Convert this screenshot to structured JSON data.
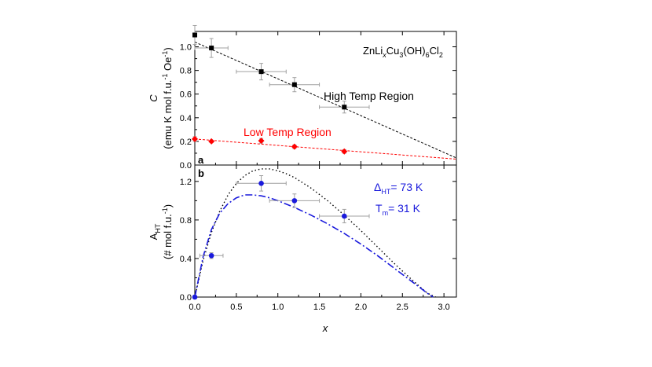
{
  "chart_data": [
    {
      "id": "a",
      "type": "scatter",
      "panel_label": "a",
      "compound": {
        "base": "ZnLi",
        "x": "x",
        "mid": "Cu",
        "n1": "3",
        "grp": "(OH)",
        "n2": "6",
        "tail": "Cl",
        "n3": "2"
      },
      "ylabel_main": "C",
      "ylabel_unit": {
        "pre": "(emu K mol f.u.",
        "e1": "-1",
        "mid": " Oe",
        "e2": "-1",
        "post": ")"
      },
      "xlim": [
        0,
        3.15
      ],
      "ylim": [
        0,
        1.13
      ],
      "yticks": [
        0.0,
        0.2,
        0.4,
        0.6,
        0.8,
        1.0
      ],
      "ytick_labels": [
        "0.0",
        "0.2",
        "0.4",
        "0.6",
        "0.8",
        "1.0"
      ],
      "xticks": [
        0.0,
        0.5,
        1.0,
        1.5,
        2.0,
        2.5,
        3.0
      ],
      "series": [
        {
          "name": "High Temp Region",
          "color": "#000000",
          "marker": "square",
          "points": [
            {
              "x": 0.0,
              "y": 1.1,
              "xerr": 0.0,
              "yerr": 0.08
            },
            {
              "x": 0.2,
              "y": 0.99,
              "xerr": 0.2,
              "yerr": 0.08
            },
            {
              "x": 0.8,
              "y": 0.79,
              "xerr": 0.3,
              "yerr": 0.07
            },
            {
              "x": 1.2,
              "y": 0.68,
              "xerr": 0.3,
              "yerr": 0.06
            },
            {
              "x": 1.8,
              "y": 0.49,
              "xerr": 0.3,
              "yerr": 0.05
            }
          ],
          "fit": {
            "style": "dashed",
            "x": [
              0.0,
              3.15
            ],
            "y": [
              1.04,
              0.06
            ]
          }
        },
        {
          "name": "Low Temp Region",
          "color": "#ff0000",
          "marker": "diamond",
          "points": [
            {
              "x": 0.0,
              "y": 0.22,
              "xerr": 0.0,
              "yerr": 0.02
            },
            {
              "x": 0.2,
              "y": 0.2,
              "xerr": 0.0,
              "yerr": 0.01
            },
            {
              "x": 0.8,
              "y": 0.205,
              "xerr": 0.0,
              "yerr": 0.02
            },
            {
              "x": 1.2,
              "y": 0.155,
              "xerr": 0.0,
              "yerr": 0.015
            },
            {
              "x": 1.8,
              "y": 0.115,
              "xerr": 0.0,
              "yerr": 0.015
            }
          ],
          "fit": {
            "style": "dashed",
            "x": [
              0.0,
              3.15
            ],
            "y": [
              0.22,
              0.05
            ]
          }
        }
      ],
      "annotations": {
        "high": {
          "text": "High Temp Region",
          "color": "#000000"
        },
        "low": {
          "text": "Low Temp Region",
          "color": "#ff0000"
        }
      }
    },
    {
      "id": "b",
      "type": "scatter",
      "panel_label": "b",
      "ylabel_main": {
        "base": "A",
        "sub": "HT"
      },
      "ylabel_unit": {
        "pre": "(# mol f.u.",
        "e1": "-1",
        "post": ")"
      },
      "xlabel": "x",
      "xlim": [
        0,
        3.15
      ],
      "ylim": [
        0,
        1.37
      ],
      "yticks": [
        0.0,
        0.4,
        0.8,
        1.2
      ],
      "ytick_labels": [
        "0.0",
        "0.4",
        "0.8",
        "1.2"
      ],
      "xticks": [
        0.0,
        0.5,
        1.0,
        1.5,
        2.0,
        2.5,
        3.0
      ],
      "xtick_labels": [
        "0.0",
        "0.5",
        "1.0",
        "1.5",
        "2.0",
        "2.5",
        "3.0"
      ],
      "series": [
        {
          "name": "data",
          "color": "#1a1adc",
          "marker": "circle",
          "points": [
            {
              "x": 0.0,
              "y": 0.0,
              "xerr": 0.0,
              "yerr": 0.0
            },
            {
              "x": 0.2,
              "y": 0.43,
              "xerr": 0.14,
              "yerr": 0.03
            },
            {
              "x": 0.8,
              "y": 1.18,
              "xerr": 0.3,
              "yerr": 0.08
            },
            {
              "x": 1.2,
              "y": 1.0,
              "xerr": 0.3,
              "yerr": 0.07
            },
            {
              "x": 1.8,
              "y": 0.84,
              "xerr": 0.3,
              "yerr": 0.07
            }
          ]
        },
        {
          "name": "model-dotted",
          "color": "#000000",
          "style": "dotted",
          "x": [
            0.0,
            0.1,
            0.2,
            0.3,
            0.4,
            0.5,
            0.6,
            0.7,
            0.8,
            0.9,
            1.0,
            1.1,
            1.2,
            1.4,
            1.6,
            1.8,
            2.0,
            2.2,
            2.4,
            2.6,
            2.8,
            2.9
          ],
          "y": [
            0.0,
            0.38,
            0.67,
            0.89,
            1.06,
            1.18,
            1.26,
            1.31,
            1.33,
            1.33,
            1.31,
            1.28,
            1.24,
            1.13,
            1.0,
            0.85,
            0.69,
            0.52,
            0.35,
            0.19,
            0.04,
            0.0
          ]
        },
        {
          "name": "model-dashdot",
          "color": "#1a1adc",
          "style": "dashdot",
          "x": [
            0.0,
            0.1,
            0.2,
            0.3,
            0.4,
            0.5,
            0.6,
            0.7,
            0.8,
            0.9,
            1.0,
            1.2,
            1.4,
            1.6,
            1.8,
            2.0,
            2.2,
            2.4,
            2.6,
            2.8,
            2.87
          ],
          "y": [
            0.0,
            0.42,
            0.7,
            0.87,
            0.97,
            1.03,
            1.06,
            1.06,
            1.05,
            1.03,
            1.0,
            0.93,
            0.85,
            0.76,
            0.66,
            0.55,
            0.43,
            0.3,
            0.17,
            0.04,
            0.0
          ]
        }
      ],
      "annotations": {
        "delta": {
          "base": "Δ",
          "sub": "HT",
          "rest": "= 73 K",
          "color": "#1a1adc"
        },
        "tm": {
          "base": "T",
          "sub": "m",
          "rest": "= 31 K",
          "color": "#1a1adc"
        }
      }
    }
  ]
}
